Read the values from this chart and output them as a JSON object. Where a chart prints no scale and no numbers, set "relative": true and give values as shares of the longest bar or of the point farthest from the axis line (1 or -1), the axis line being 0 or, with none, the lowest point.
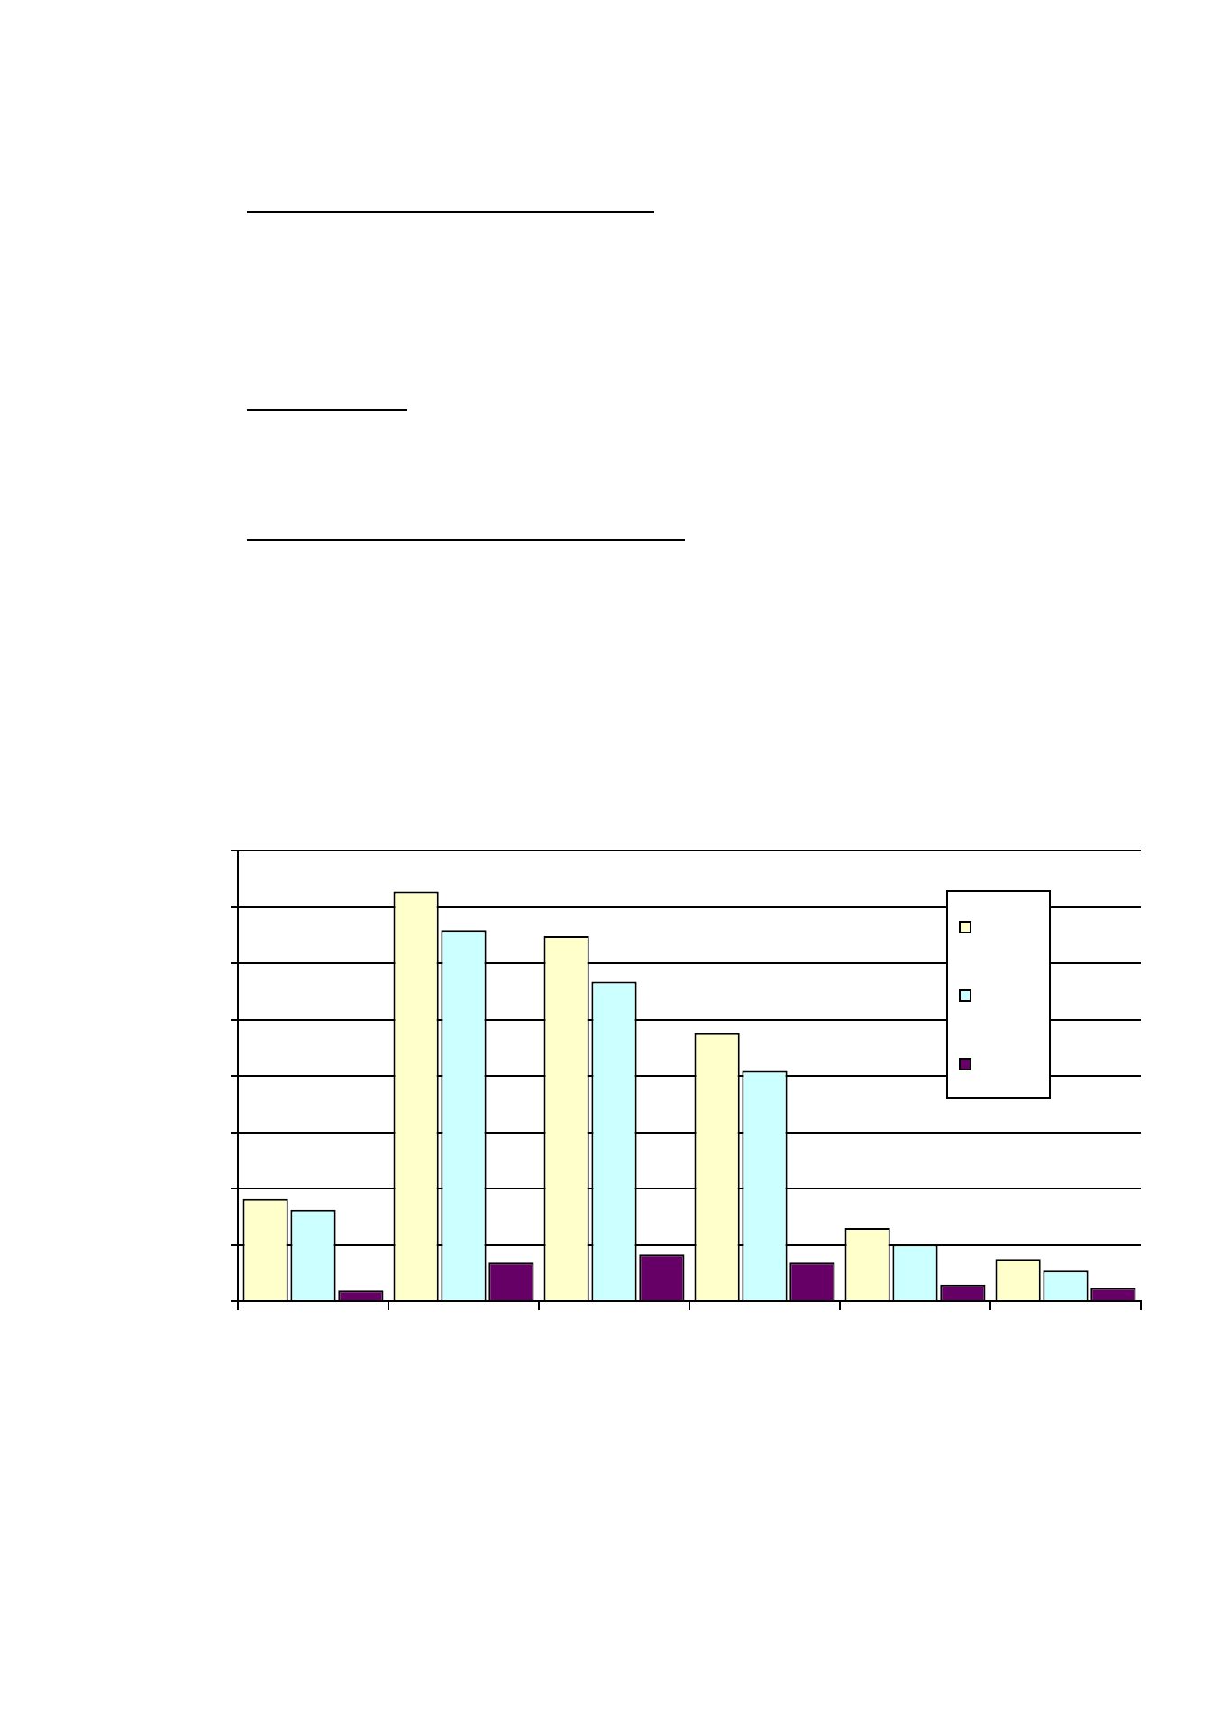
{
  "chart_data": {
    "type": "bar",
    "relative": true,
    "grid": "y",
    "categories": [
      null,
      null,
      null,
      null,
      null,
      null
    ],
    "series": [
      {
        "color": "#ffffcc",
        "values": [
          0.249,
          1,
          0.891,
          0.654,
          0.178,
          0.103
        ]
      },
      {
        "color": "#ccffff",
        "values": [
          0.223,
          0.906,
          0.78,
          0.562,
          0.138,
          0.074
        ]
      },
      {
        "color": "#660066",
        "values": [
          0.026,
          0.094,
          0.114,
          0.094,
          0.04,
          0.032
        ]
      }
    ]
  }
}
